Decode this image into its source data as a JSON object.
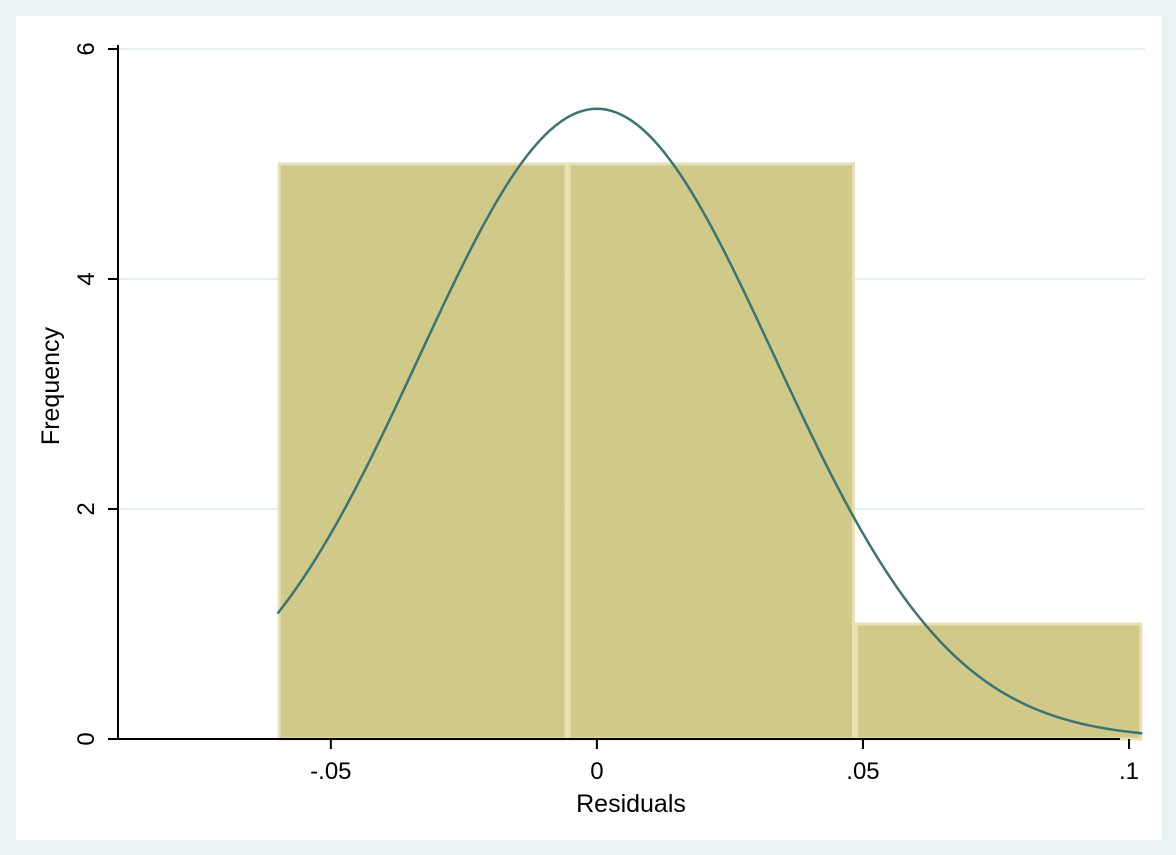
{
  "chart_data": {
    "type": "bar",
    "xlabel": "Residuals",
    "ylabel": "Frequency",
    "xlim": [
      -0.09,
      0.103
    ],
    "ylim": [
      0,
      6
    ],
    "bins": [
      {
        "start": -0.06,
        "end": -0.0055,
        "count": 5
      },
      {
        "start": -0.0055,
        "end": 0.0485,
        "count": 5
      },
      {
        "start": 0.0485,
        "end": 0.1025,
        "count": 1
      }
    ],
    "x_ticks": [
      {
        "value": -0.05,
        "label": "-.05"
      },
      {
        "value": 0,
        "label": "0"
      },
      {
        "value": 0.05,
        "label": ".05"
      },
      {
        "value": 0.1,
        "label": ".1"
      }
    ],
    "y_ticks": [
      {
        "value": 0,
        "label": "0"
      },
      {
        "value": 2,
        "label": "2"
      },
      {
        "value": 4,
        "label": "4"
      },
      {
        "value": 6,
        "label": "6"
      }
    ],
    "normal_curve": {
      "mean": 0.0,
      "sd": 0.0334,
      "peak": 5.48,
      "x_start": -0.06,
      "x_end": 0.1025
    },
    "grid": true,
    "legend": "none"
  },
  "colors": {
    "background": "#eaf2f3",
    "plot_background": "#ffffff",
    "bar_fill": "#d0c98a",
    "bar_edge": "#e6e0b4",
    "curve": "#3b7470",
    "grid": "#e4eff0",
    "axis": "#000000"
  }
}
